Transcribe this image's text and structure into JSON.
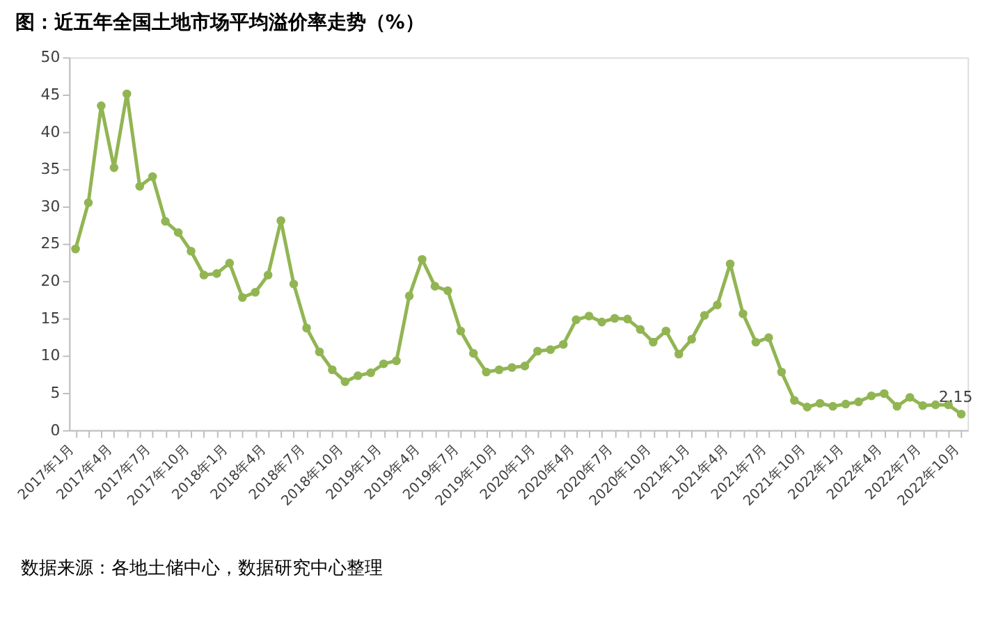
{
  "chart_data": {
    "type": "line",
    "title": "图：近五年全国土地市场平均溢价率走势（%）",
    "categories": [
      "2017年1月",
      null,
      null,
      "2017年4月",
      null,
      null,
      "2017年7月",
      null,
      null,
      "2017年10月",
      null,
      null,
      "2018年1月",
      null,
      null,
      "2018年4月",
      null,
      null,
      "2018年7月",
      null,
      null,
      "2018年10月",
      null,
      null,
      "2019年1月",
      null,
      null,
      "2019年4月",
      null,
      null,
      "2019年7月",
      null,
      null,
      "2019年10月",
      null,
      null,
      "2020年1月",
      null,
      null,
      "2020年4月",
      null,
      null,
      "2020年7月",
      null,
      null,
      "2020年10月",
      null,
      null,
      "2021年1月",
      null,
      null,
      "2021年4月",
      null,
      null,
      "2021年7月",
      null,
      null,
      "2021年10月",
      null,
      null,
      "2022年1月",
      null,
      null,
      "2022年4月",
      null,
      null,
      "2022年7月",
      null,
      null,
      "2022年10月"
    ],
    "series": [
      {
        "color": "#92b553",
        "values": [
          24.3,
          30.5,
          43.5,
          35.2,
          45.1,
          32.7,
          34,
          28,
          26.5,
          24,
          20.8,
          21,
          22.4,
          17.8,
          18.5,
          20.8,
          28.1,
          19.6,
          13.7,
          10.5,
          8.1,
          6.5,
          7.3,
          7.7,
          8.9,
          9.3,
          18,
          22.9,
          19.3,
          18.7,
          13.3,
          10.3,
          7.8,
          8.1,
          8.4,
          8.6,
          10.6,
          10.8,
          11.5,
          14.8,
          15.3,
          14.5,
          15,
          14.9,
          13.5,
          11.8,
          13.3,
          10.2,
          12.2,
          15.4,
          16.8,
          22.3,
          15.6,
          11.8,
          12.4,
          7.8,
          4,
          3.1,
          3.6,
          3.2,
          3.5,
          3.8,
          4.6,
          4.9,
          3.2,
          4.4,
          3.3,
          3.4,
          3.4,
          2.15
        ],
        "value_labels": [
          null,
          null,
          null,
          null,
          null,
          null,
          null,
          null,
          null,
          null,
          null,
          null,
          null,
          null,
          null,
          null,
          null,
          null,
          null,
          null,
          null,
          null,
          null,
          null,
          null,
          null,
          null,
          null,
          null,
          null,
          null,
          null,
          null,
          null,
          null,
          null,
          null,
          null,
          null,
          null,
          null,
          null,
          null,
          null,
          null,
          null,
          null,
          null,
          null,
          null,
          null,
          null,
          null,
          null,
          null,
          null,
          null,
          null,
          null,
          null,
          null,
          null,
          null,
          null,
          null,
          null,
          null,
          null,
          null,
          "2.15"
        ]
      }
    ],
    "ylim": [
      0,
      50
    ],
    "yticks": [
      0,
      5,
      10,
      15,
      20,
      25,
      30,
      35,
      40,
      45,
      50
    ],
    "grid": false,
    "marker": "circle",
    "line_style": "solid",
    "legend": false,
    "annotations": [
      "数据来源：各地土储中心，数据研究中心整理"
    ]
  }
}
